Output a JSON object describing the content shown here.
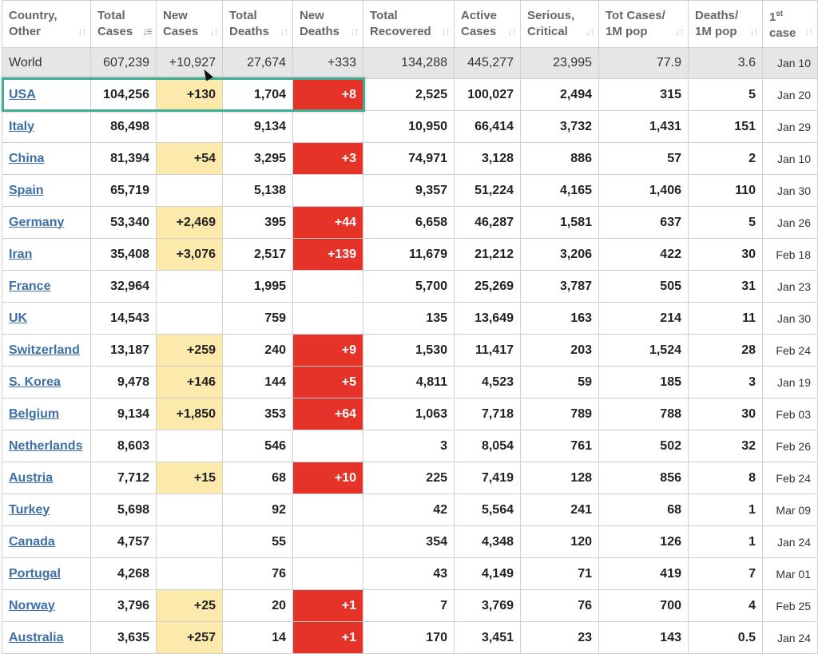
{
  "colors": {
    "new_cases_bg": "#fbeaac",
    "new_deaths_bg": "#e6332a",
    "link": "#3d6fa8",
    "highlight_border": "#3fae94",
    "world_row_bg": "#e6e6e6"
  },
  "headers": [
    {
      "line1": "Country,",
      "line2": "Other",
      "sort_icon": "sort-icon"
    },
    {
      "line1": "Total",
      "line2": "Cases",
      "sort_icon": "sort-desc-icon"
    },
    {
      "line1": "New",
      "line2": "Cases",
      "sort_icon": "sort-icon"
    },
    {
      "line1": "Total",
      "line2": "Deaths",
      "sort_icon": "sort-icon"
    },
    {
      "line1": "New",
      "line2": "Deaths",
      "sort_icon": "sort-icon"
    },
    {
      "line1": "Total",
      "line2": "Recovered",
      "sort_icon": "sort-icon"
    },
    {
      "line1": "Active",
      "line2": "Cases",
      "sort_icon": "sort-icon"
    },
    {
      "line1": "Serious,",
      "line2": "Critical",
      "sort_icon": "sort-icon"
    },
    {
      "line1": "Tot Cases/",
      "line2": "1M pop",
      "sort_icon": "sort-icon"
    },
    {
      "line1": "Deaths/",
      "line2": "1M pop",
      "sort_icon": "sort-icon"
    },
    {
      "line1": "1",
      "sup": "st",
      "line2": "case",
      "sort_icon": "sort-icon"
    }
  ],
  "world": [
    "World",
    "607,239",
    "+10,927",
    "27,674",
    "+333",
    "134,288",
    "445,277",
    "23,995",
    "77.9",
    "3.6",
    "Jan 10"
  ],
  "rows": [
    [
      "USA",
      "104,256",
      "+130",
      "1,704",
      "+8",
      "2,525",
      "100,027",
      "2,494",
      "315",
      "5",
      "Jan 20"
    ],
    [
      "Italy",
      "86,498",
      "",
      "9,134",
      "",
      "10,950",
      "66,414",
      "3,732",
      "1,431",
      "151",
      "Jan 29"
    ],
    [
      "China",
      "81,394",
      "+54",
      "3,295",
      "+3",
      "74,971",
      "3,128",
      "886",
      "57",
      "2",
      "Jan 10"
    ],
    [
      "Spain",
      "65,719",
      "",
      "5,138",
      "",
      "9,357",
      "51,224",
      "4,165",
      "1,406",
      "110",
      "Jan 30"
    ],
    [
      "Germany",
      "53,340",
      "+2,469",
      "395",
      "+44",
      "6,658",
      "46,287",
      "1,581",
      "637",
      "5",
      "Jan 26"
    ],
    [
      "Iran",
      "35,408",
      "+3,076",
      "2,517",
      "+139",
      "11,679",
      "21,212",
      "3,206",
      "422",
      "30",
      "Feb 18"
    ],
    [
      "France",
      "32,964",
      "",
      "1,995",
      "",
      "5,700",
      "25,269",
      "3,787",
      "505",
      "31",
      "Jan 23"
    ],
    [
      "UK",
      "14,543",
      "",
      "759",
      "",
      "135",
      "13,649",
      "163",
      "214",
      "11",
      "Jan 30"
    ],
    [
      "Switzerland",
      "13,187",
      "+259",
      "240",
      "+9",
      "1,530",
      "11,417",
      "203",
      "1,524",
      "28",
      "Feb 24"
    ],
    [
      "S. Korea",
      "9,478",
      "+146",
      "144",
      "+5",
      "4,811",
      "4,523",
      "59",
      "185",
      "3",
      "Jan 19"
    ],
    [
      "Belgium",
      "9,134",
      "+1,850",
      "353",
      "+64",
      "1,063",
      "7,718",
      "789",
      "788",
      "30",
      "Feb 03"
    ],
    [
      "Netherlands",
      "8,603",
      "",
      "546",
      "",
      "3",
      "8,054",
      "761",
      "502",
      "32",
      "Feb 26"
    ],
    [
      "Austria",
      "7,712",
      "+15",
      "68",
      "+10",
      "225",
      "7,419",
      "128",
      "856",
      "8",
      "Feb 24"
    ],
    [
      "Turkey",
      "5,698",
      "",
      "92",
      "",
      "42",
      "5,564",
      "241",
      "68",
      "1",
      "Mar 09"
    ],
    [
      "Canada",
      "4,757",
      "",
      "55",
      "",
      "354",
      "4,348",
      "120",
      "126",
      "1",
      "Jan 24"
    ],
    [
      "Portugal",
      "4,268",
      "",
      "76",
      "",
      "43",
      "4,149",
      "71",
      "419",
      "7",
      "Mar 01"
    ],
    [
      "Norway",
      "3,796",
      "+25",
      "20",
      "+1",
      "7",
      "3,769",
      "76",
      "700",
      "4",
      "Feb 25"
    ],
    [
      "Australia",
      "3,635",
      "+257",
      "14",
      "+1",
      "170",
      "3,451",
      "23",
      "143",
      "0.5",
      "Jan 24"
    ]
  ]
}
